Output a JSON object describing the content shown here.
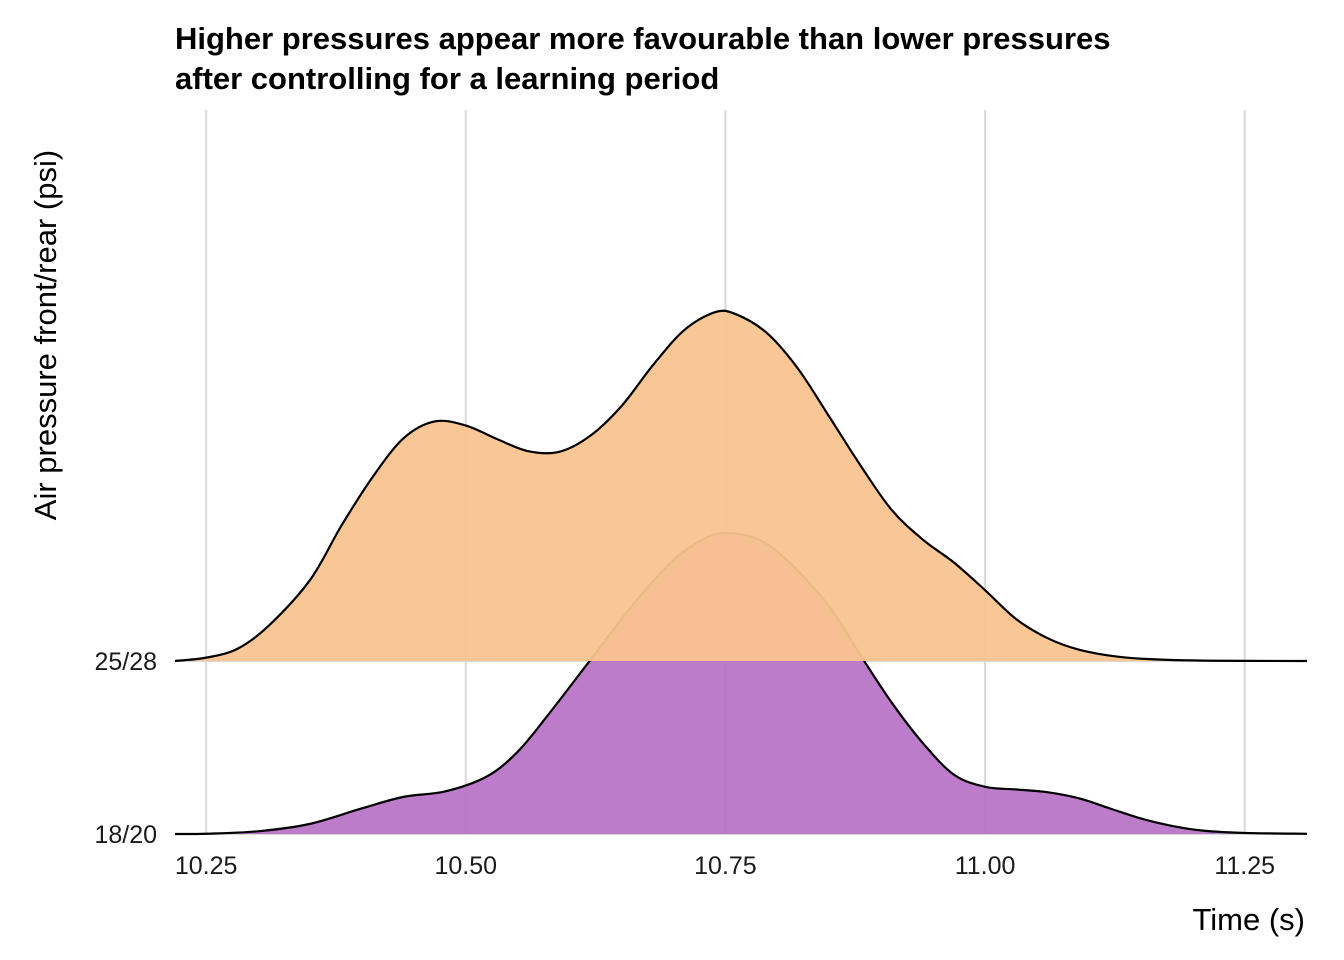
{
  "chart_data": {
    "type": "area",
    "subtype": "ridgeline-density",
    "title": "Higher pressures appear more favourable than lower pressures after controlling for a learning period",
    "title_lines": [
      "Higher pressures appear more favourable than lower pressures",
      "after controlling for a learning period"
    ],
    "xlabel": "Time (s)",
    "ylabel": "Air pressure front/rear (psi)",
    "xlim": [
      10.22,
      11.31
    ],
    "x_ticks": [
      10.25,
      10.5,
      10.75,
      11.0,
      11.25
    ],
    "x_tick_labels": [
      "10.25",
      "10.50",
      "10.75",
      "11.00",
      "11.25"
    ],
    "categories": [
      "18/20",
      "25/28"
    ],
    "grid": true,
    "legend": "none",
    "density_unit_height": 0.39,
    "series": [
      {
        "name": "18/20",
        "color": "#b771c5",
        "opacity": 0.92,
        "points": [
          [
            10.22,
            0.0
          ],
          [
            10.25,
            0.004
          ],
          [
            10.3,
            0.04
          ],
          [
            10.35,
            0.15
          ],
          [
            10.4,
            0.38
          ],
          [
            10.44,
            0.55
          ],
          [
            10.48,
            0.63
          ],
          [
            10.52,
            0.85
          ],
          [
            10.55,
            1.22
          ],
          [
            10.58,
            1.78
          ],
          [
            10.62,
            2.58
          ],
          [
            10.66,
            3.38
          ],
          [
            10.7,
            4.06
          ],
          [
            10.73,
            4.38
          ],
          [
            10.75,
            4.46
          ],
          [
            10.78,
            4.38
          ],
          [
            10.81,
            4.05
          ],
          [
            10.85,
            3.37
          ],
          [
            10.88,
            2.65
          ],
          [
            10.91,
            1.95
          ],
          [
            10.94,
            1.35
          ],
          [
            10.97,
            0.88
          ],
          [
            11.0,
            0.7
          ],
          [
            11.03,
            0.66
          ],
          [
            11.06,
            0.62
          ],
          [
            11.09,
            0.53
          ],
          [
            11.12,
            0.38
          ],
          [
            11.15,
            0.23
          ],
          [
            11.18,
            0.12
          ],
          [
            11.21,
            0.05
          ],
          [
            11.25,
            0.016
          ],
          [
            11.31,
            0.003
          ]
        ]
      },
      {
        "name": "25/28",
        "color": "#f9c48f",
        "opacity": 0.95,
        "points": [
          [
            10.22,
            0.0
          ],
          [
            10.25,
            0.05
          ],
          [
            10.28,
            0.18
          ],
          [
            10.31,
            0.52
          ],
          [
            10.35,
            1.2
          ],
          [
            10.38,
            2.0
          ],
          [
            10.41,
            2.72
          ],
          [
            10.44,
            3.3
          ],
          [
            10.47,
            3.55
          ],
          [
            10.5,
            3.49
          ],
          [
            10.53,
            3.29
          ],
          [
            10.56,
            3.11
          ],
          [
            10.59,
            3.1
          ],
          [
            10.62,
            3.34
          ],
          [
            10.65,
            3.78
          ],
          [
            10.68,
            4.38
          ],
          [
            10.71,
            4.9
          ],
          [
            10.74,
            5.17
          ],
          [
            10.76,
            5.14
          ],
          [
            10.79,
            4.86
          ],
          [
            10.82,
            4.33
          ],
          [
            10.85,
            3.62
          ],
          [
            10.88,
            2.9
          ],
          [
            10.91,
            2.24
          ],
          [
            10.94,
            1.8
          ],
          [
            10.97,
            1.46
          ],
          [
            11.0,
            1.05
          ],
          [
            11.03,
            0.62
          ],
          [
            11.06,
            0.34
          ],
          [
            11.09,
            0.17
          ],
          [
            11.13,
            0.06
          ],
          [
            11.17,
            0.02
          ],
          [
            11.21,
            0.006
          ],
          [
            11.25,
            0.002
          ],
          [
            11.31,
            0.0
          ]
        ]
      }
    ]
  }
}
